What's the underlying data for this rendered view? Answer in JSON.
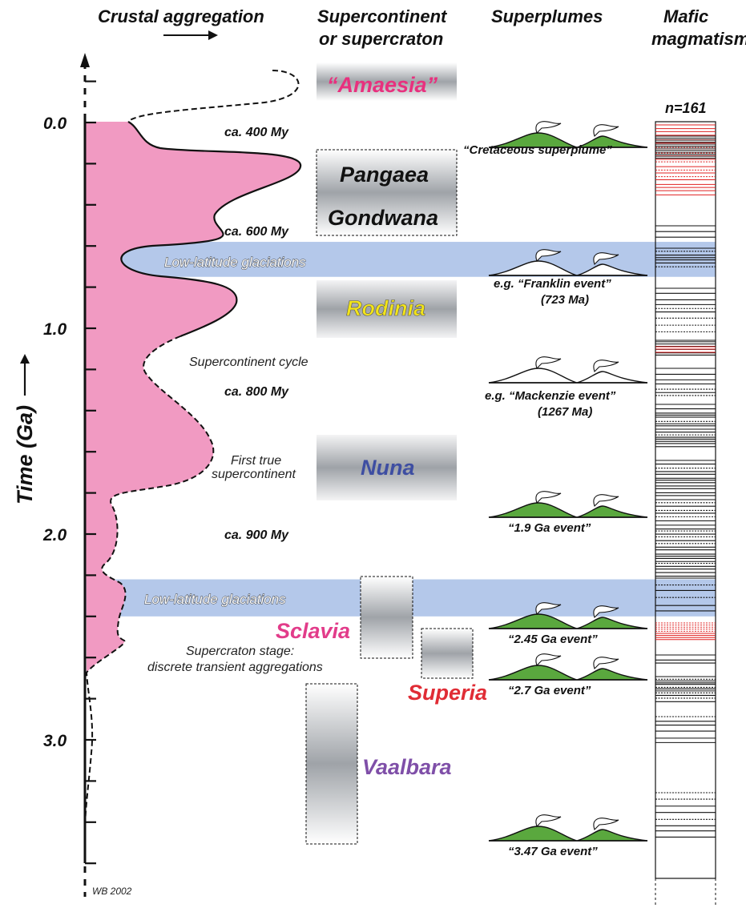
{
  "headers": {
    "crustal": "Crustal aggregation",
    "supercontinent_1": "Supercontinent",
    "supercontinent_2": "or supercraton",
    "superplumes": "Superplumes",
    "mafic_1": "Mafic",
    "mafic_2": "magmatism"
  },
  "axis": {
    "title": "Time (Ga)",
    "labels": [
      {
        "value": 0.0,
        "text": "0.0"
      },
      {
        "value": 1.0,
        "text": "1.0"
      },
      {
        "value": 2.0,
        "text": "2.0"
      },
      {
        "value": 3.0,
        "text": "3.0"
      }
    ],
    "minor_step": 0.2,
    "range_ga": [
      -0.2,
      3.8
    ]
  },
  "periods": [
    {
      "text": "ca. 400 My",
      "ga": 0.04
    },
    {
      "text": "ca. 600 My",
      "ga": 0.52
    },
    {
      "text": "ca. 800 My",
      "ga": 1.3
    },
    {
      "text": "ca. 900 My",
      "ga": 2.0
    }
  ],
  "notes": {
    "cycle": "Supercontinent cycle",
    "first_true_1": "First true",
    "first_true_2": "supercontinent",
    "craton_stage_1": "Supercraton stage:",
    "craton_stage_2": "discrete transient aggregations"
  },
  "glaciations": [
    {
      "label": "Low-latitude glaciations",
      "start_ga": 0.58,
      "end_ga": 0.75,
      "color": "#b4c8ea"
    },
    {
      "label": "Low-latitude glaciations",
      "start_ga": 2.22,
      "end_ga": 2.4,
      "color": "#b4c8ea"
    }
  ],
  "supercontinents": [
    {
      "name": "“Amaesia”",
      "color": "#e8307e",
      "start_ga": -0.3,
      "end_ga": -0.1,
      "dashed": false
    },
    {
      "name": "Pangaea",
      "color": "#111111",
      "start_ga": 0.13,
      "end_ga": 0.55,
      "dashed": true
    },
    {
      "name": "Gondwana",
      "color": "#111111",
      "start_ga": 0.13,
      "end_ga": 0.55,
      "dashed": true
    },
    {
      "name": "Rodinia",
      "color": "#f2e41a",
      "start_ga": 0.75,
      "end_ga": 1.05,
      "dashed": false
    },
    {
      "name": "Nuna",
      "color": "#3e4ea2",
      "start_ga": 1.5,
      "end_ga": 1.85,
      "dashed": false
    },
    {
      "name": "Sclavia",
      "color": "#e23c8a",
      "start_ga": 2.2,
      "end_ga": 2.6,
      "dashed": true
    },
    {
      "name": "Superia",
      "color": "#e02c35",
      "start_ga": 2.45,
      "end_ga": 2.7,
      "dashed": true
    },
    {
      "name": "Vaalbara",
      "color": "#7f4fa8",
      "start_ga": 2.75,
      "end_ga": 3.6,
      "dashed": true
    }
  ],
  "superplumes": [
    {
      "label_1": "“Cretaceous superplume”",
      "label_2": "",
      "ga": 0.12,
      "green": true
    },
    {
      "label_1": "e.g. “Franklin event”",
      "label_2": "(723 Ma)",
      "ga": 0.72,
      "green": false
    },
    {
      "label_1": "e.g. “Mackenzie event”",
      "label_2": "(1267 Ma)",
      "ga": 1.27,
      "green": false
    },
    {
      "label_1": "“1.9 Ga event”",
      "label_2": "",
      "ga": 1.9,
      "green": true
    },
    {
      "label_1": "“2.45 Ga event”",
      "label_2": "",
      "ga": 2.45,
      "green": true
    },
    {
      "label_1": "“2.7 Ga event”",
      "label_2": "",
      "ga": 2.7,
      "green": true
    },
    {
      "label_1": "“3.47 Ga event”",
      "label_2": "",
      "ga": 3.47,
      "green": true
    }
  ],
  "mafic": {
    "n_label": "n=161",
    "red_color": "#e02020",
    "line_color": "#111111"
  },
  "credit": "WB 2002",
  "colors": {
    "crust_fill": "#f19ac2",
    "plume_green": "#5aa83e"
  }
}
